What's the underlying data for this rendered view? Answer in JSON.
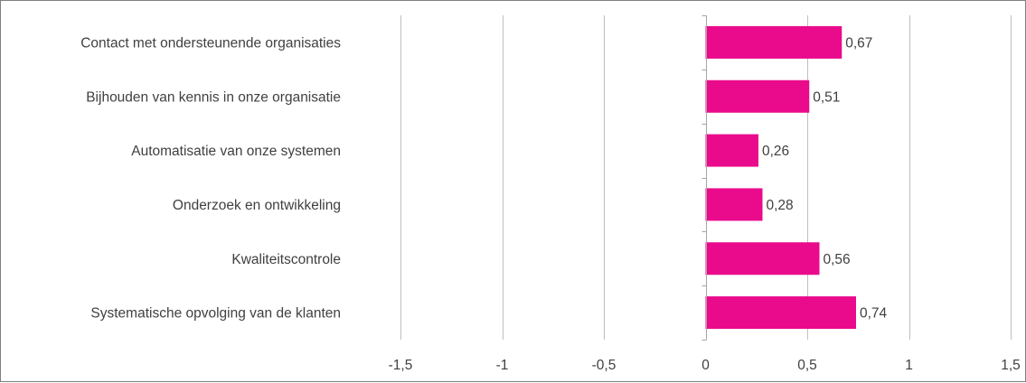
{
  "chart_data": {
    "type": "bar",
    "orientation": "horizontal",
    "title": "",
    "xlabel": "",
    "ylabel": "",
    "categories": [
      "Contact met ondersteunende organisaties",
      "Bijhouden van kennis in onze organisatie",
      "Automatisatie van onze systemen",
      "Onderzoek en ontwikkeling",
      "Kwaliteitscontrole",
      "Systematische opvolging van de klanten"
    ],
    "values": [
      0.67,
      0.51,
      0.26,
      0.28,
      0.56,
      0.74
    ],
    "value_labels": [
      "0,67",
      "0,51",
      "0,26",
      "0,28",
      "0,56",
      "0,74"
    ],
    "xlim": [
      -1.5,
      1.5
    ],
    "xticks": [
      -1.5,
      -1,
      -0.5,
      0,
      0.5,
      1,
      1.5
    ],
    "xtick_labels": [
      "-1,5",
      "-1",
      "-0,5",
      "0",
      "0,5",
      "1",
      "1,5"
    ],
    "grid": "vertical",
    "legend": "none",
    "bar_color": "#ea0a8c",
    "gridline_color": "#bfbfbf",
    "text_color": "#404040"
  }
}
